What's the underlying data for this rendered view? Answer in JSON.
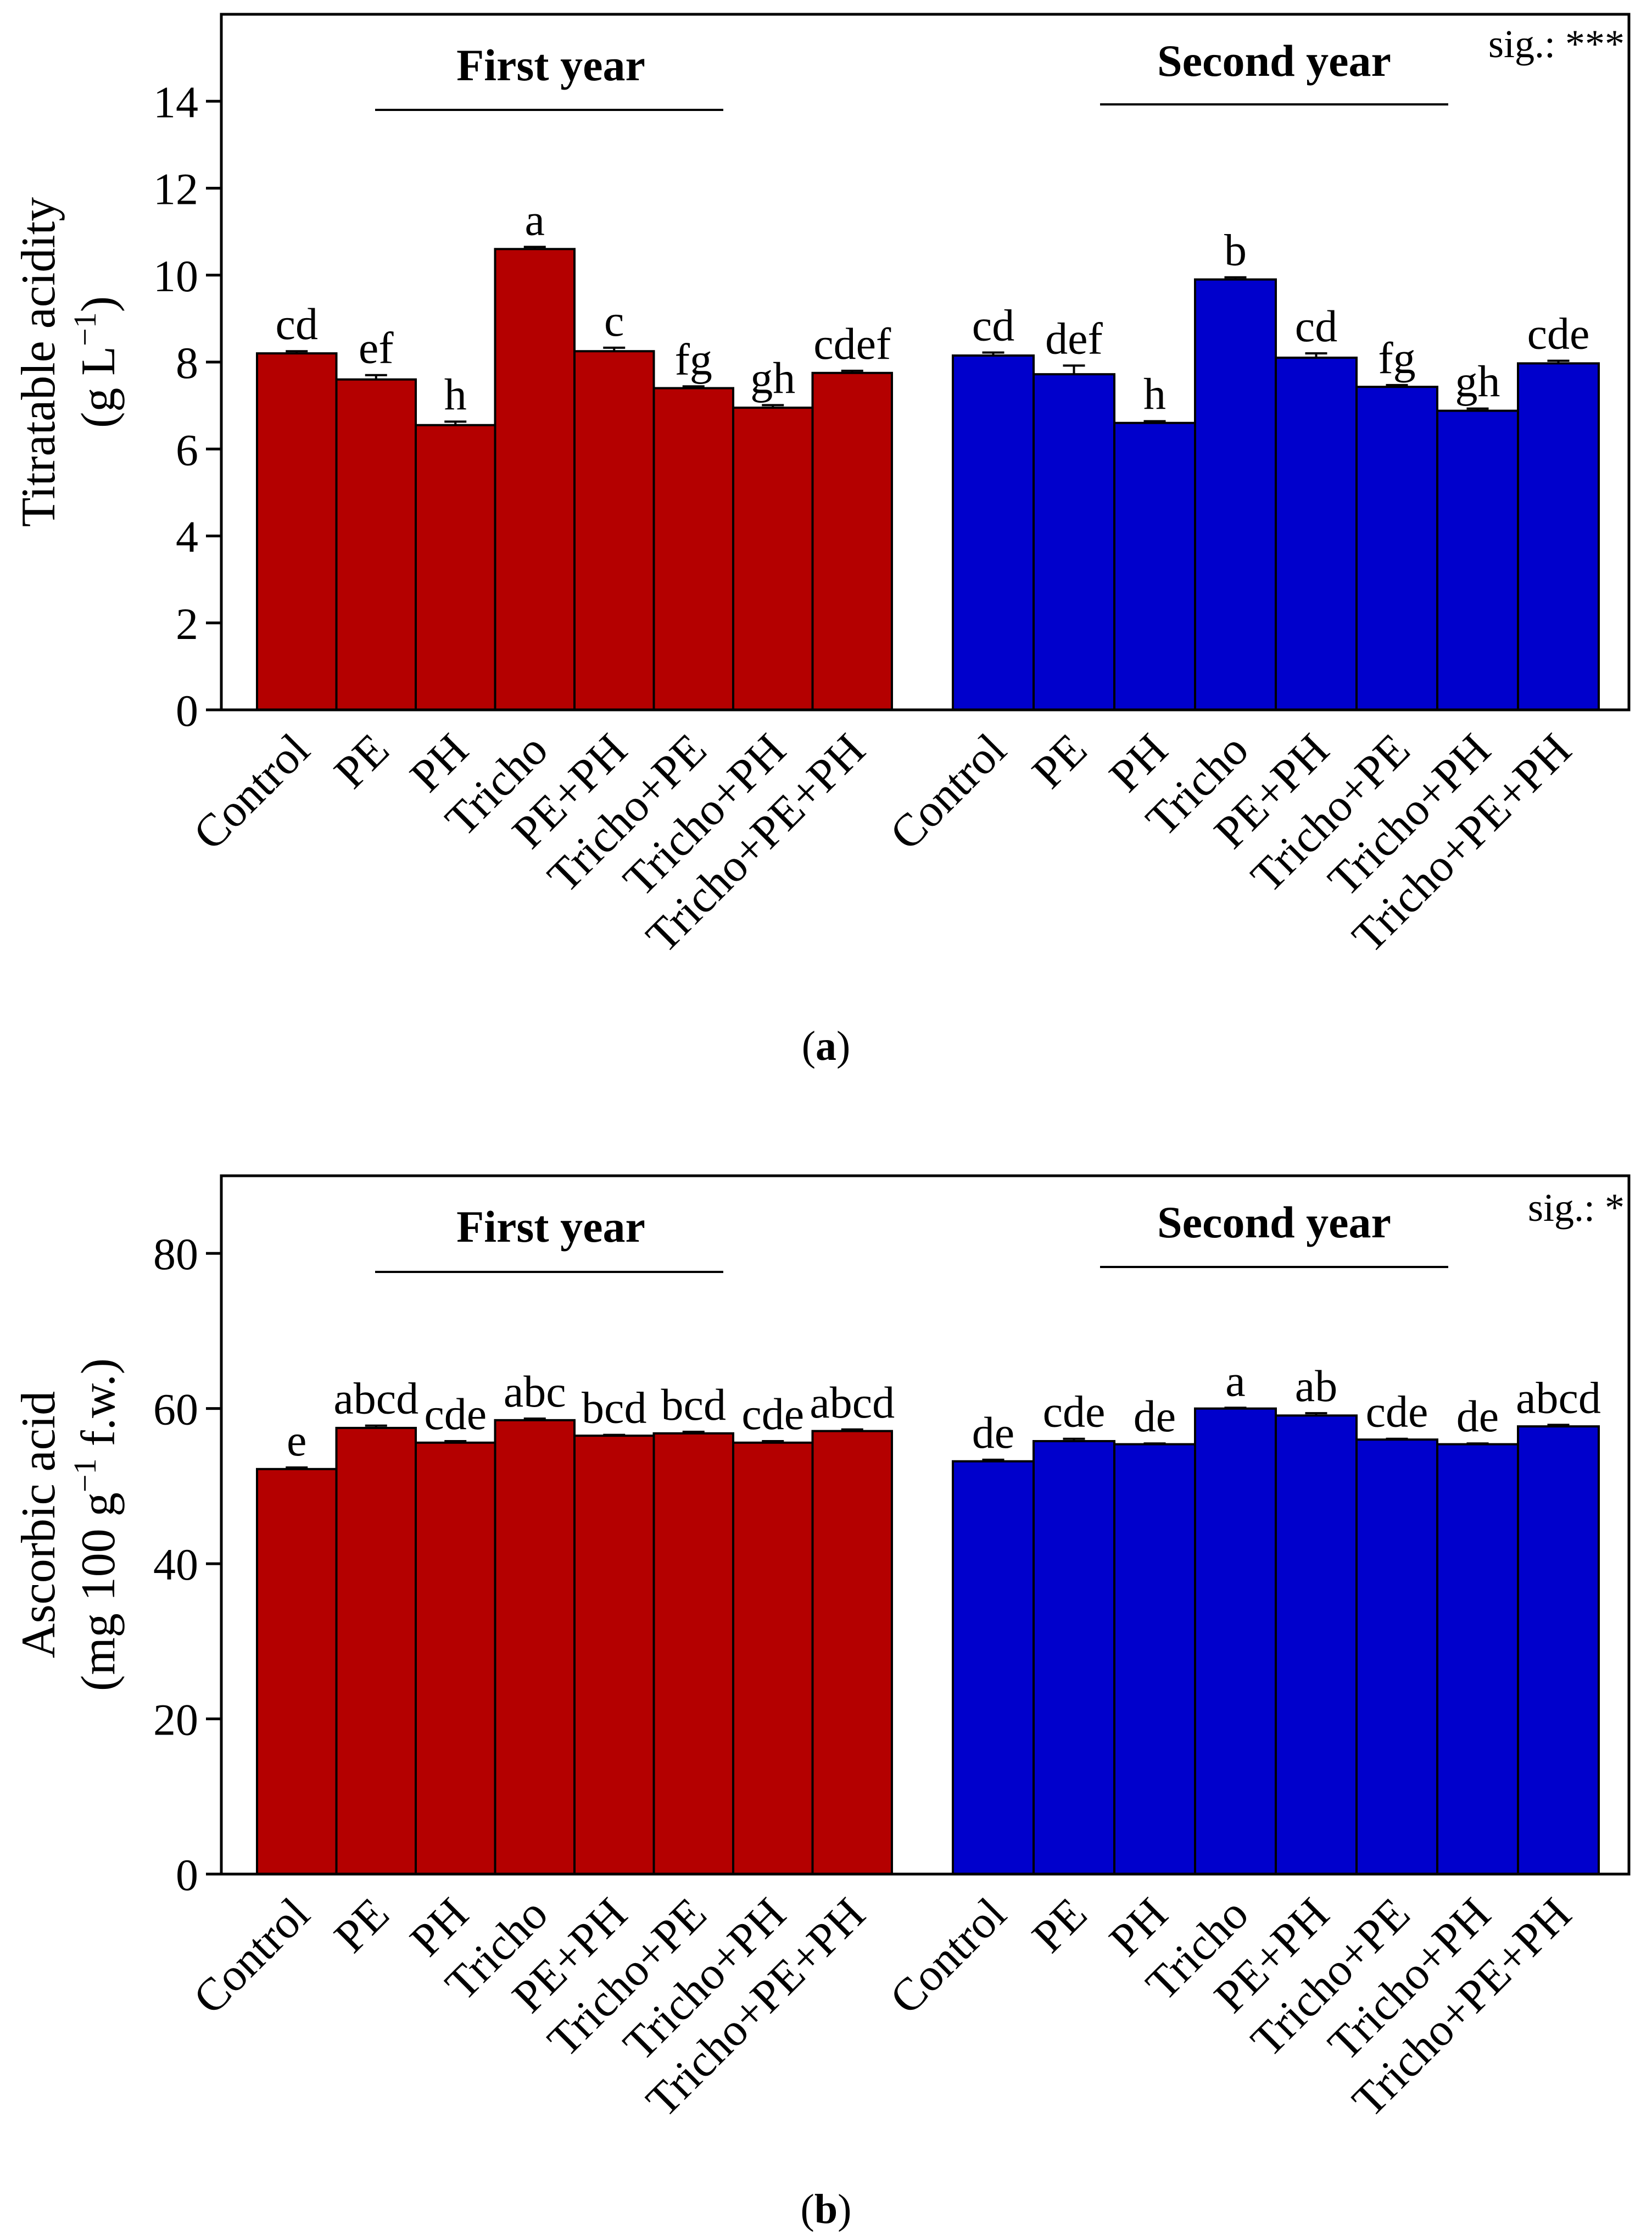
{
  "chart_data": [
    {
      "type": "bar",
      "panel_label": {
        "open": "(",
        "letter": "a",
        "close": ")"
      },
      "ylabel": "Titratable acidity",
      "ylabel_units": {
        "before": "(g L",
        "sup": "−1",
        "after": ")"
      },
      "ylim": [
        0,
        16
      ],
      "yticks": [
        0,
        2,
        4,
        6,
        8,
        10,
        12,
        14
      ],
      "significance": "sig.: ***",
      "groups": [
        {
          "name": "First year",
          "color": "#b40000",
          "categories": [
            "Control",
            "PE",
            "PH",
            "Tricho",
            "PE+PH",
            "Tricho+PE",
            "Tricho+PH",
            "Tricho+PE+PH"
          ],
          "values": [
            8.2,
            7.6,
            6.55,
            10.6,
            8.25,
            7.4,
            6.95,
            7.75
          ],
          "errors": [
            0.05,
            0.1,
            0.08,
            0.05,
            0.08,
            0.04,
            0.06,
            0.05
          ],
          "letters": [
            "cd",
            "ef",
            "h",
            "a",
            "c",
            "fg",
            "gh",
            "cdef"
          ]
        },
        {
          "name": "Second year",
          "color": "#0000cc",
          "categories": [
            "Control",
            "PE",
            "PH",
            "Tricho",
            "PE+PH",
            "Tricho+PE",
            "Tricho+PH",
            "Tricho+PE+PH"
          ],
          "values": [
            8.15,
            7.72,
            6.6,
            9.9,
            8.1,
            7.43,
            6.88,
            7.97
          ],
          "errors": [
            0.07,
            0.2,
            0.04,
            0.05,
            0.1,
            0.04,
            0.05,
            0.06
          ],
          "letters": [
            "cd",
            "def",
            "h",
            "b",
            "cd",
            "fg",
            "gh",
            "cde"
          ]
        }
      ]
    },
    {
      "type": "bar",
      "panel_label": {
        "open": "(",
        "letter": "b",
        "close": ")"
      },
      "ylabel": "Ascorbic acid",
      "ylabel_units": {
        "before": "(mg 100 g",
        "sup": "−1",
        "after": " f.w.)"
      },
      "ylim": [
        0,
        90
      ],
      "yticks": [
        0,
        20,
        40,
        60,
        80
      ],
      "significance": "sig.: *",
      "groups": [
        {
          "name": "First year",
          "color": "#b40000",
          "categories": [
            "Control",
            "PE",
            "PH",
            "Tricho",
            "PE+PH",
            "Tricho+PE",
            "Tricho+PH",
            "Tricho+PE+PH"
          ],
          "values": [
            52.2,
            57.5,
            55.6,
            58.5,
            56.5,
            56.8,
            55.6,
            57.1
          ],
          "errors": [
            0.2,
            0.3,
            0.2,
            0.2,
            0.1,
            0.2,
            0.2,
            0.2
          ],
          "letters": [
            "e",
            "abcd",
            "cde",
            "abc",
            "bcd",
            "bcd",
            "cde",
            "abcd"
          ]
        },
        {
          "name": "Second year",
          "color": "#0000cc",
          "categories": [
            "Control",
            "PE",
            "PH",
            "Tricho",
            "PE+PH",
            "Tricho+PE",
            "Tricho+PH",
            "Tricho+PE+PH"
          ],
          "values": [
            53.2,
            55.8,
            55.4,
            60.0,
            59.1,
            56.0,
            55.4,
            57.7
          ],
          "errors": [
            0.2,
            0.3,
            0.1,
            0.1,
            0.3,
            0.1,
            0.1,
            0.2
          ],
          "letters": [
            "de",
            "cde",
            "de",
            "a",
            "ab",
            "cde",
            "de",
            "abcd"
          ]
        }
      ]
    }
  ]
}
